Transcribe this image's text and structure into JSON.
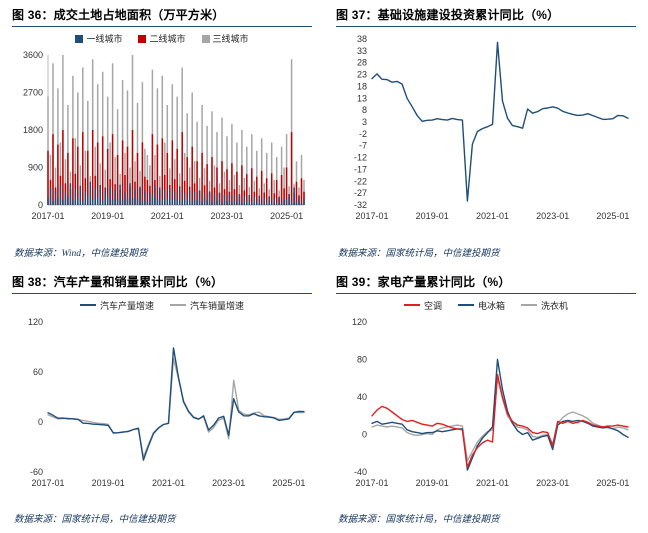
{
  "colors": {
    "navy": "#1F4E79",
    "red": "#C00000",
    "bright_red": "#E02020",
    "gray": "#A6A6A6",
    "rule": "#1F4E79",
    "source_text": "#17375E",
    "axis_text": "#333333"
  },
  "figures": [
    {
      "title": "图 36：成交土地占地面积（万平方米）",
      "source": "数据来源：Wind，中信建投期货"
    },
    {
      "title": "图 37：基础设施建设投资累计同比（%）",
      "source": "数据来源：国家统计局，中信建投期货"
    },
    {
      "title": "图 38：汽车产量和销量累计同比（%）",
      "source": "数据来源：国家统计局，中信建投期货"
    },
    {
      "title": "图 39：家电产量累计同比（%）",
      "source": "数据来源：国家统计局，中信建投期货"
    }
  ],
  "chart_data": [
    {
      "type": "bar",
      "title": "成交土地占地面积（万平方米）",
      "ylim": [
        0,
        3600
      ],
      "yticks": [
        0,
        900,
        1800,
        2700,
        3600
      ],
      "x_tick_labels": [
        "2017-01",
        "2019-01",
        "2021-01",
        "2023-01",
        "2025-01"
      ],
      "x_tick_idx": [
        0,
        24,
        48,
        72,
        96
      ],
      "legend_marker": "square",
      "series": [
        {
          "name": "一线城市",
          "color": "navy",
          "values": [
            180,
            420,
            90,
            350,
            160,
            480,
            120,
            300,
            200,
            520,
            110,
            380,
            170,
            450,
            90,
            330,
            210,
            560,
            130,
            400,
            180,
            470,
            100,
            350,
            190,
            430,
            120,
            360,
            150,
            490,
            110,
            310,
            170,
            520,
            140,
            390,
            160,
            440,
            100,
            340,
            80,
            300,
            200,
            480,
            150,
            420,
            110,
            370,
            160,
            400,
            120,
            330,
            140,
            450,
            100,
            290,
            150,
            380,
            90,
            310,
            130,
            350,
            80,
            280,
            120,
            330,
            70,
            260,
            110,
            300,
            60,
            240,
            100,
            280,
            70,
            230,
            90,
            260,
            60,
            210,
            80,
            240,
            50,
            200,
            70,
            220,
            40,
            180,
            60,
            200,
            35,
            160,
            50,
            180,
            30,
            150,
            120,
            260,
            60,
            420,
            80,
            180,
            40,
            140
          ]
        },
        {
          "name": "二线城市",
          "color": "red",
          "values": [
            1300,
            600,
            1700,
            420,
            1450,
            700,
            1800,
            520,
            1250,
            380,
            1600,
            750,
            1400,
            460,
            1750,
            640,
            1300,
            350,
            1800,
            700,
            1500,
            480,
            1650,
            420,
            1350,
            620,
            1700,
            500,
            1200,
            360,
            1550,
            720,
            1400,
            430,
            1800,
            560,
            1250,
            400,
            1500,
            680,
            600,
            460,
            1700,
            600,
            1450,
            350,
            1600,
            720,
            1250,
            480,
            1550,
            620,
            1350,
            400,
            1750,
            580,
            1150,
            440,
            1400,
            520,
            1050,
            330,
            1250,
            470,
            980,
            300,
            1150,
            420,
            900,
            280,
            1050,
            380,
            860,
            320,
            1000,
            380,
            800,
            260,
            950,
            350,
            740,
            240,
            880,
            320,
            680,
            220,
            820,
            300,
            640,
            210,
            760,
            280,
            600,
            200,
            720,
            400,
            900,
            260,
            1750,
            300,
            560,
            230,
            640,
            320
          ]
        },
        {
          "name": "三线城市",
          "color": "gray",
          "values": [
            2600,
            1200,
            3400,
            900,
            2800,
            1500,
            3600,
            1100,
            2400,
            800,
            3100,
            1600,
            2700,
            950,
            3300,
            1300,
            2500,
            700,
            3500,
            1400,
            2900,
            1000,
            3200,
            850,
            2600,
            1500,
            3400,
            1150,
            2300,
            750,
            3000,
            1250,
            2750,
            900,
            3600,
            1050,
            2450,
            820,
            2950,
            1350,
            1200,
            950,
            3250,
            1200,
            2800,
            700,
            3100,
            1500,
            2400,
            880,
            2900,
            1100,
            2600,
            760,
            3300,
            1250,
            2200,
            900,
            2700,
            1050,
            2000,
            650,
            2400,
            880,
            1900,
            580,
            2250,
            950,
            1750,
            520,
            2100,
            800,
            1650,
            600,
            1950,
            720,
            1500,
            480,
            1800,
            650,
            1400,
            430,
            1700,
            580,
            1300,
            400,
            1600,
            520,
            1250,
            380,
            1500,
            600,
            1150,
            350,
            1400,
            900,
            1700,
            450,
            3500,
            500,
            1050,
            420,
            1200,
            600
          ]
        }
      ]
    },
    {
      "type": "line",
      "title": "基础设施建设投资累计同比（%）",
      "legend": false,
      "ylim": [
        -32,
        38
      ],
      "yticks": [
        -32,
        -27,
        -22,
        -17,
        -12,
        -7,
        -2,
        3,
        8,
        13,
        18,
        23,
        28,
        33,
        38
      ],
      "x_tick_labels": [
        "2017-01",
        "2019-01",
        "2021-01",
        "2023-01",
        "2025-01"
      ],
      "x_tick_idx": [
        0,
        12,
        24,
        36,
        48
      ],
      "series": [
        {
          "name": "基础设施建设投资累计同比",
          "color": "navy",
          "values": [
            21.3,
            23.3,
            21.0,
            20.9,
            19.8,
            20.1,
            19.0,
            13.0,
            9.4,
            5.7,
            3.3,
            3.7,
            3.8,
            4.4,
            4.0,
            3.8,
            4.5,
            4.0,
            3.8,
            -30.3,
            -6.3,
            -1.0,
            0.2,
            1.0,
            2.0,
            36.6,
            11.8,
            4.6,
            1.5,
            1.0,
            0.4,
            8.5,
            6.7,
            7.4,
            8.6,
            8.9,
            9.4,
            8.8,
            7.5,
            6.8,
            6.2,
            5.8,
            5.9,
            6.5,
            5.7,
            4.9,
            4.1,
            4.2,
            4.4,
            5.8,
            5.6,
            4.6
          ]
        }
      ]
    },
    {
      "type": "line",
      "title": "汽车产量和销量累计同比（%）",
      "ylim": [
        -60,
        120
      ],
      "yticks": [
        -60,
        0,
        60,
        120
      ],
      "x_tick_labels": [
        "2017-01",
        "2019-01",
        "2021-01",
        "2023-01",
        "2025-01"
      ],
      "x_tick_idx": [
        0,
        12,
        24,
        36,
        48
      ],
      "legend_marker": "line",
      "series": [
        {
          "name": "汽车产量增速",
          "color": "navy",
          "values": [
            11.1,
            8.0,
            4.6,
            4.7,
            3.8,
            3.9,
            3.2,
            -1.4,
            -1.7,
            -2.6,
            -2.9,
            -3.3,
            -4.1,
            -13.0,
            -12.8,
            -11.9,
            -11.4,
            -9.0,
            -7.5,
            -45.8,
            -29.0,
            -14.0,
            -7.3,
            -3.0,
            -1.4,
            88.9,
            53.4,
            24.2,
            12.6,
            5.3,
            3.4,
            7.5,
            -9.6,
            -3.7,
            4.8,
            6.9,
            -16.0,
            28.0,
            12.0,
            7.5,
            7.3,
            10.0,
            7.5,
            6.4,
            6.0,
            4.9,
            1.9,
            2.7,
            3.7,
            11.5,
            12.7,
            12.5
          ]
        },
        {
          "name": "汽车销量增速",
          "color": "gray",
          "values": [
            8.8,
            6.0,
            3.7,
            4.2,
            4.5,
            3.6,
            3.0,
            1.7,
            0.9,
            -0.5,
            -1.5,
            -1.9,
            -2.8,
            -13.5,
            -13.0,
            -12.4,
            -11.0,
            -9.1,
            -8.2,
            -42.0,
            -27.0,
            -12.7,
            -6.9,
            -2.9,
            -1.9,
            76.2,
            51.8,
            25.6,
            13.2,
            6.1,
            3.8,
            6.2,
            -12.1,
            -6.6,
            2.5,
            4.6,
            -20.0,
            50.0,
            14.0,
            9.5,
            8.5,
            10.8,
            12.0,
            7.8,
            6.2,
            5.5,
            3.2,
            3.6,
            4.5,
            12.0,
            11.2,
            11.5
          ]
        }
      ]
    },
    {
      "type": "line",
      "title": "家电产量累计同比（%）",
      "ylim": [
        -40,
        120
      ],
      "yticks": [
        -40,
        0,
        40,
        80,
        120
      ],
      "x_tick_labels": [
        "2017-01",
        "2019-01",
        "2021-01",
        "2023-01",
        "2025-01"
      ],
      "x_tick_idx": [
        0,
        12,
        24,
        36,
        48
      ],
      "legend_marker": "line",
      "series": [
        {
          "name": "空调",
          "color": "bright_red",
          "values": [
            20,
            26,
            30,
            28,
            24,
            20,
            16,
            14,
            15,
            13,
            11,
            10,
            9,
            12,
            11,
            9,
            7,
            6,
            5,
            -35,
            -22,
            -14,
            -9,
            -6,
            -8,
            64,
            40,
            22,
            14,
            10,
            9,
            7,
            2,
            1,
            3,
            2,
            -12,
            14,
            12,
            14,
            12,
            13,
            15,
            13,
            10,
            9,
            8,
            9,
            9,
            10,
            9,
            8
          ]
        },
        {
          "name": "电冰箱",
          "color": "navy",
          "values": [
            12,
            14,
            11,
            12,
            13,
            12,
            11,
            5,
            3,
            2,
            1,
            2,
            2,
            4,
            3,
            4,
            5,
            6,
            6,
            -38,
            -25,
            -12,
            -4,
            2,
            8,
            80,
            48,
            25,
            12,
            4,
            0,
            2,
            -6,
            -4,
            -2,
            -1,
            -16,
            10,
            14,
            15,
            14,
            15,
            14,
            12,
            9,
            8,
            7,
            8,
            6,
            4,
            0,
            -3
          ]
        },
        {
          "name": "洗衣机",
          "color": "gray",
          "values": [
            8,
            10,
            9,
            8,
            9,
            8,
            7,
            2,
            0,
            -1,
            0,
            1,
            0,
            5,
            7,
            8,
            9,
            10,
            9,
            -28,
            -18,
            -8,
            -2,
            3,
            5,
            60,
            38,
            20,
            12,
            8,
            7,
            5,
            -2,
            -3,
            -1,
            0,
            -10,
            12,
            18,
            22,
            24,
            22,
            20,
            17,
            12,
            10,
            8,
            7,
            6,
            8,
            7,
            5
          ]
        }
      ]
    }
  ]
}
